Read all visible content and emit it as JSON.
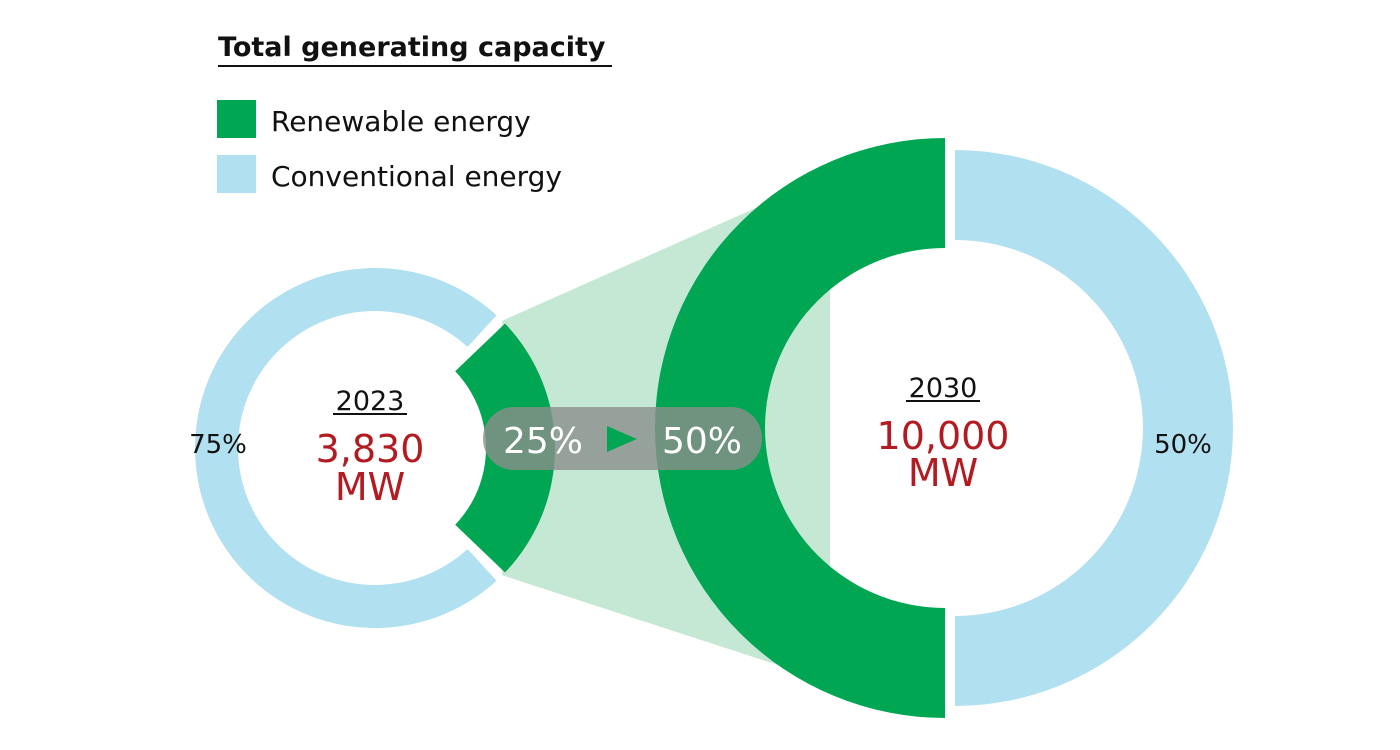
{
  "chart_data": {
    "type": "pie",
    "title": "Total generating capacity",
    "legend": [
      {
        "label": "Renewable energy",
        "color": "#00a651"
      },
      {
        "label": "Conventional energy",
        "color": "#b1e0f0"
      }
    ],
    "legend_position": "top-left",
    "charts": [
      {
        "year": "2023",
        "total_value": "3,830",
        "unit": "MW",
        "renewable_pct": 25,
        "conventional_pct": 75,
        "conventional_label": "75%"
      },
      {
        "year": "2030",
        "total_value": "10,000",
        "unit": "MW",
        "renewable_pct": 50,
        "conventional_pct": 50,
        "conventional_label": "50%"
      }
    ],
    "transition": {
      "from": "25%",
      "to": "50%"
    }
  },
  "colors": {
    "renewable": "#00a651",
    "conventional": "#b1e0f0",
    "fan": "#c4e8d4",
    "value": "#b31b22",
    "pill": "#8c8f8c"
  }
}
